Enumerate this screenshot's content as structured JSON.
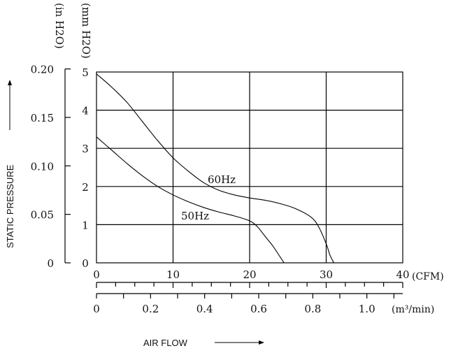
{
  "chart_data": {
    "type": "line",
    "ylabel": "STATIC PRESSURE",
    "xlabel": "AIR FLOW",
    "grid": true,
    "y_axes": [
      {
        "unit": "(mm H2O)",
        "ticks": [
          "0",
          "1",
          "2",
          "3",
          "4",
          "5"
        ],
        "range": [
          0,
          5
        ]
      },
      {
        "unit": "(in H2O)",
        "ticks": [
          "0",
          "0.05",
          "0.10",
          "0.15",
          "0.20"
        ],
        "range": [
          0,
          0.2
        ]
      }
    ],
    "x_axes": [
      {
        "unit": "(CFM)",
        "ticks": [
          "0",
          "10",
          "20",
          "30",
          "40"
        ],
        "range": [
          0,
          40
        ]
      },
      {
        "unit": "(m³/min)",
        "ticks": [
          "0",
          "0.2",
          "0.4",
          "0.6",
          "0.8",
          "1.0"
        ],
        "range": [
          0,
          1.133
        ]
      }
    ],
    "series": [
      {
        "name": "60Hz",
        "x_unit": "CFM",
        "y_unit": "mm H2O",
        "points": [
          [
            0,
            4.95
          ],
          [
            2,
            4.6
          ],
          [
            4,
            4.2
          ],
          [
            6,
            3.7
          ],
          [
            8,
            3.2
          ],
          [
            10,
            2.75
          ],
          [
            12,
            2.4
          ],
          [
            14,
            2.1
          ],
          [
            16,
            1.9
          ],
          [
            18,
            1.78
          ],
          [
            20,
            1.7
          ],
          [
            22,
            1.64
          ],
          [
            24,
            1.55
          ],
          [
            26,
            1.42
          ],
          [
            28,
            1.2
          ],
          [
            29,
            0.95
          ],
          [
            30,
            0.5
          ],
          [
            30.5,
            0.2
          ],
          [
            31,
            0
          ]
        ]
      },
      {
        "name": "50Hz",
        "x_unit": "CFM",
        "y_unit": "mm H2O",
        "points": [
          [
            0,
            3.3
          ],
          [
            2,
            2.95
          ],
          [
            4,
            2.6
          ],
          [
            6,
            2.28
          ],
          [
            8,
            2.0
          ],
          [
            10,
            1.78
          ],
          [
            12,
            1.6
          ],
          [
            14,
            1.45
          ],
          [
            16,
            1.33
          ],
          [
            18,
            1.23
          ],
          [
            20,
            1.1
          ],
          [
            21,
            0.95
          ],
          [
            22,
            0.7
          ],
          [
            23,
            0.45
          ],
          [
            24,
            0.15
          ],
          [
            24.5,
            0
          ]
        ]
      }
    ]
  }
}
